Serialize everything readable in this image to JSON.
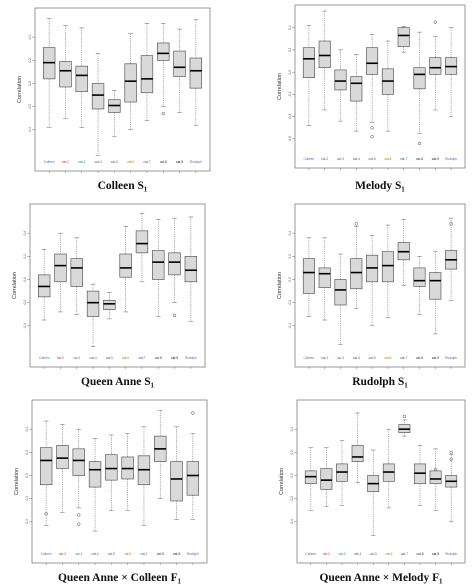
{
  "figure": {
    "y_label": "Correlation",
    "group_colors": [
      "#4a6fb3",
      "#c0392b",
      "#2e8b57",
      "#555555",
      "#7d3c98",
      "#b9770e",
      "#1f618d",
      "#333333",
      "#111111"
    ],
    "box_fill": "#d9d9d9",
    "box_stroke": "#444444",
    "median_color": "#000000",
    "whisker_color": "#777777"
  },
  "chart_data": [
    {
      "type": "boxplot",
      "title": "Colleen S₁",
      "ylabel": "Correlation",
      "ylim": [
        -0.6,
        0.6
      ],
      "yticks": [
        "0.4",
        "0.2",
        "0.0",
        "-0.2",
        "-0.4"
      ],
      "categories": [
        "Colleen",
        "cat-2",
        "cat-3",
        "cat-4",
        "cat-5",
        "cat-6",
        "cat-7",
        "cat-8",
        "cat-9",
        "Rudolph"
      ],
      "boxes": [
        {
          "min": -0.38,
          "q1": 0.04,
          "median": 0.18,
          "q3": 0.31,
          "max": 0.56,
          "outliers": []
        },
        {
          "min": -0.3,
          "q1": -0.03,
          "median": 0.11,
          "q3": 0.19,
          "max": 0.5,
          "outliers": []
        },
        {
          "min": -0.38,
          "q1": -0.07,
          "median": 0.07,
          "q3": 0.15,
          "max": 0.48,
          "outliers": []
        },
        {
          "min": -0.62,
          "q1": -0.22,
          "median": -0.1,
          "q3": 0.0,
          "max": 0.26,
          "outliers": []
        },
        {
          "min": -0.46,
          "q1": -0.25,
          "median": -0.19,
          "q3": -0.14,
          "max": -0.06,
          "outliers": []
        },
        {
          "min": -0.4,
          "q1": -0.16,
          "median": 0.02,
          "q3": 0.17,
          "max": 0.43,
          "outliers": []
        },
        {
          "min": -0.32,
          "q1": -0.08,
          "median": 0.04,
          "q3": 0.24,
          "max": 0.52,
          "outliers": []
        },
        {
          "min": -0.2,
          "q1": 0.2,
          "median": 0.26,
          "q3": 0.35,
          "max": 0.52,
          "outliers": [
            -0.26
          ]
        },
        {
          "min": -0.25,
          "q1": 0.06,
          "median": 0.14,
          "q3": 0.28,
          "max": 0.47,
          "outliers": []
        },
        {
          "min": -0.36,
          "q1": -0.04,
          "median": 0.11,
          "q3": 0.22,
          "max": 0.55,
          "outliers": []
        }
      ]
    },
    {
      "type": "boxplot",
      "title": "Melody S₁",
      "ylabel": "Correlation",
      "ylim": [
        -0.7,
        0.55
      ],
      "yticks": [
        "0.4",
        "0.2",
        "0.0",
        "-0.2",
        "-0.4",
        "-0.6"
      ],
      "categories": [
        "Colleen",
        "cat-2",
        "cat-3",
        "cat-4",
        "cat-5",
        "cat-6",
        "cat-7",
        "cat-8",
        "cat-9",
        "Rudolph"
      ],
      "boxes": [
        {
          "min": -0.48,
          "q1": -0.05,
          "median": 0.12,
          "q3": 0.22,
          "max": 0.42,
          "outliers": []
        },
        {
          "min": -0.34,
          "q1": 0.04,
          "median": 0.15,
          "q3": 0.28,
          "max": 0.55,
          "outliers": []
        },
        {
          "min": -0.44,
          "q1": -0.16,
          "median": -0.08,
          "q3": 0.02,
          "max": 0.2,
          "outliers": []
        },
        {
          "min": -0.53,
          "q1": -0.26,
          "median": -0.1,
          "q3": -0.04,
          "max": 0.16,
          "outliers": []
        },
        {
          "min": -0.45,
          "q1": -0.02,
          "median": 0.08,
          "q3": 0.22,
          "max": 0.34,
          "outliers": [
            -0.5,
            -0.58
          ]
        },
        {
          "min": -0.53,
          "q1": -0.2,
          "median": -0.08,
          "q3": 0.03,
          "max": 0.28,
          "outliers": []
        },
        {
          "min": 0.18,
          "q1": 0.23,
          "median": 0.33,
          "q3": 0.4,
          "max": 0.41,
          "outliers": []
        },
        {
          "min": -0.55,
          "q1": -0.15,
          "median": -0.02,
          "q3": 0.04,
          "max": 0.36,
          "outliers": [
            -0.64
          ]
        },
        {
          "min": -0.34,
          "q1": -0.02,
          "median": 0.04,
          "q3": 0.13,
          "max": 0.32,
          "outliers": [
            0.45
          ]
        },
        {
          "min": -0.4,
          "q1": -0.02,
          "median": 0.05,
          "q3": 0.13,
          "max": 0.4,
          "outliers": []
        }
      ]
    },
    {
      "type": "boxplot",
      "title": "Queen Anne S₁",
      "ylabel": "Correlation",
      "ylim": [
        -0.6,
        0.6
      ],
      "yticks": [
        "0.4",
        "0.2",
        "0.0",
        "-0.2",
        "-0.4"
      ],
      "categories": [
        "Colleen",
        "cat-2",
        "cat-3",
        "cat-4",
        "cat-5",
        "cat-6",
        "cat-7",
        "cat-8",
        "cat-9",
        "Rudolph"
      ],
      "boxes": [
        {
          "min": -0.35,
          "q1": -0.15,
          "median": -0.06,
          "q3": 0.04,
          "max": 0.26,
          "outliers": []
        },
        {
          "min": -0.28,
          "q1": -0.02,
          "median": 0.12,
          "q3": 0.22,
          "max": 0.4,
          "outliers": []
        },
        {
          "min": -0.3,
          "q1": -0.06,
          "median": 0.1,
          "q3": 0.18,
          "max": 0.36,
          "outliers": []
        },
        {
          "min": -0.58,
          "q1": -0.32,
          "median": -0.2,
          "q3": -0.1,
          "max": -0.04,
          "outliers": []
        },
        {
          "min": -0.34,
          "q1": -0.26,
          "median": -0.21,
          "q3": -0.18,
          "max": -0.11,
          "outliers": []
        },
        {
          "min": -0.28,
          "q1": 0.02,
          "median": 0.1,
          "q3": 0.22,
          "max": 0.46,
          "outliers": []
        },
        {
          "min": -0.02,
          "q1": 0.23,
          "median": 0.31,
          "q3": 0.42,
          "max": 0.57,
          "outliers": []
        },
        {
          "min": -0.32,
          "q1": 0.0,
          "median": 0.15,
          "q3": 0.25,
          "max": 0.52,
          "outliers": []
        },
        {
          "min": -0.2,
          "q1": 0.04,
          "median": 0.15,
          "q3": 0.23,
          "max": 0.53,
          "outliers": [
            -0.31
          ]
        },
        {
          "min": -0.36,
          "q1": -0.02,
          "median": 0.08,
          "q3": 0.2,
          "max": 0.54,
          "outliers": []
        }
      ]
    },
    {
      "type": "boxplot",
      "title": "Rudolph S₁",
      "ylabel": "Correlation",
      "ylim": [
        -0.6,
        0.6
      ],
      "yticks": [
        "0.4",
        "0.2",
        "0.0",
        "-0.2",
        "-0.4"
      ],
      "categories": [
        "Colleen",
        "cat-2",
        "cat-3",
        "cat-4",
        "cat-5",
        "cat-6",
        "cat-7",
        "cat-8",
        "cat-9",
        "Rudolph"
      ],
      "boxes": [
        {
          "min": -0.32,
          "q1": -0.12,
          "median": 0.06,
          "q3": 0.18,
          "max": 0.36,
          "outliers": []
        },
        {
          "min": -0.35,
          "q1": -0.07,
          "median": 0.05,
          "q3": 0.1,
          "max": 0.36,
          "outliers": []
        },
        {
          "min": -0.56,
          "q1": -0.22,
          "median": -0.09,
          "q3": 0.0,
          "max": 0.22,
          "outliers": []
        },
        {
          "min": -0.25,
          "q1": -0.08,
          "median": 0.06,
          "q3": 0.18,
          "max": 0.46,
          "outliers": [
            0.48
          ]
        },
        {
          "min": -0.4,
          "q1": -0.02,
          "median": 0.1,
          "q3": 0.21,
          "max": 0.38,
          "outliers": []
        },
        {
          "min": -0.33,
          "q1": -0.02,
          "median": 0.12,
          "q3": 0.24,
          "max": 0.47,
          "outliers": []
        },
        {
          "min": -0.05,
          "q1": 0.17,
          "median": 0.24,
          "q3": 0.32,
          "max": 0.52,
          "outliers": []
        },
        {
          "min": -0.3,
          "q1": -0.06,
          "median": -0.01,
          "q3": 0.1,
          "max": 0.2,
          "outliers": []
        },
        {
          "min": -0.47,
          "q1": -0.17,
          "median": -0.01,
          "q3": 0.06,
          "max": 0.24,
          "outliers": []
        },
        {
          "min": -0.18,
          "q1": 0.09,
          "median": 0.17,
          "q3": 0.25,
          "max": 0.53,
          "outliers": [
            0.48
          ]
        }
      ]
    },
    {
      "type": "boxplot",
      "title": "Queen Anne × Colleen F₁",
      "ylabel": "Correlation",
      "ylim": [
        -0.6,
        0.6
      ],
      "yticks": [
        "0.4",
        "0.2",
        "0.0",
        "-0.2",
        "-0.4"
      ],
      "categories": [
        "Colleen",
        "cat-2",
        "cat-3",
        "cat-4",
        "cat-5",
        "cat-6",
        "cat-7",
        "cat-8",
        "cat-9",
        "Rudolph"
      ],
      "boxes": [
        {
          "min": -0.43,
          "q1": -0.08,
          "median": 0.13,
          "q3": 0.24,
          "max": 0.47,
          "outliers": [
            -0.33
          ]
        },
        {
          "min": -0.32,
          "q1": 0.06,
          "median": 0.15,
          "q3": 0.26,
          "max": 0.44,
          "outliers": []
        },
        {
          "min": -0.28,
          "q1": 0.0,
          "median": 0.13,
          "q3": 0.23,
          "max": 0.4,
          "outliers": [
            -0.34,
            -0.42
          ]
        },
        {
          "min": -0.48,
          "q1": -0.1,
          "median": 0.05,
          "q3": 0.12,
          "max": 0.32,
          "outliers": []
        },
        {
          "min": -0.3,
          "q1": -0.04,
          "median": 0.06,
          "q3": 0.18,
          "max": 0.35,
          "outliers": []
        },
        {
          "min": -0.3,
          "q1": -0.03,
          "median": 0.06,
          "q3": 0.16,
          "max": 0.36,
          "outliers": []
        },
        {
          "min": -0.43,
          "q1": -0.08,
          "median": 0.05,
          "q3": 0.17,
          "max": 0.42,
          "outliers": []
        },
        {
          "min": -0.2,
          "q1": 0.12,
          "median": 0.23,
          "q3": 0.34,
          "max": 0.56,
          "outliers": []
        },
        {
          "min": -0.38,
          "q1": -0.22,
          "median": -0.03,
          "q3": 0.12,
          "max": 0.42,
          "outliers": []
        },
        {
          "min": -0.38,
          "q1": -0.17,
          "median": 0.0,
          "q3": 0.12,
          "max": 0.36,
          "outliers": [
            0.54
          ]
        }
      ]
    },
    {
      "type": "boxplot",
      "title": "Queen Anne × Melody F₁",
      "ylabel": "Correlation",
      "ylim": [
        -0.6,
        0.6
      ],
      "yticks": [
        "0.4",
        "0.2",
        "0.0",
        "-0.2",
        "-0.4"
      ],
      "categories": [
        "Colleen",
        "cat-2",
        "cat-3",
        "cat-4",
        "cat-5",
        "cat-6",
        "cat-7",
        "cat-8",
        "cat-9",
        "Rudolph"
      ],
      "boxes": [
        {
          "min": -0.3,
          "q1": -0.07,
          "median": -0.01,
          "q3": 0.04,
          "max": 0.24,
          "outliers": []
        },
        {
          "min": -0.27,
          "q1": -0.12,
          "median": -0.04,
          "q3": 0.06,
          "max": 0.24,
          "outliers": []
        },
        {
          "min": -0.26,
          "q1": -0.05,
          "median": 0.03,
          "q3": 0.1,
          "max": 0.3,
          "outliers": []
        },
        {
          "min": -0.06,
          "q1": 0.12,
          "median": 0.16,
          "q3": 0.26,
          "max": 0.54,
          "outliers": []
        },
        {
          "min": -0.52,
          "q1": -0.14,
          "median": -0.07,
          "q3": 0.0,
          "max": 0.22,
          "outliers": []
        },
        {
          "min": -0.28,
          "q1": -0.05,
          "median": 0.03,
          "q3": 0.1,
          "max": 0.4,
          "outliers": []
        },
        {
          "min": 0.34,
          "q1": 0.37,
          "median": 0.4,
          "q3": 0.44,
          "max": 0.48,
          "outliers": [
            0.51
          ]
        },
        {
          "min": -0.26,
          "q1": -0.07,
          "median": 0.02,
          "q3": 0.1,
          "max": 0.26,
          "outliers": []
        },
        {
          "min": -0.3,
          "q1": -0.07,
          "median": -0.03,
          "q3": 0.04,
          "max": 0.23,
          "outliers": [
            0.05
          ]
        },
        {
          "min": -0.4,
          "q1": -0.1,
          "median": -0.05,
          "q3": 0.0,
          "max": 0.18,
          "outliers": [
            0.14,
            0.2
          ]
        }
      ]
    }
  ]
}
